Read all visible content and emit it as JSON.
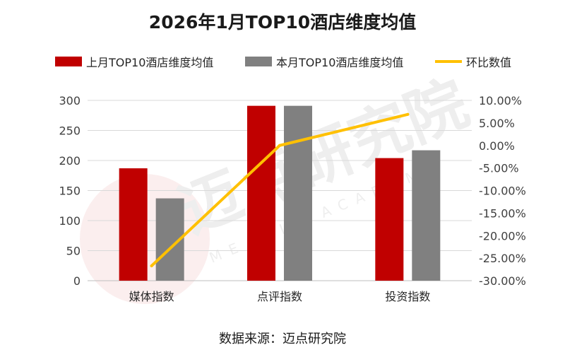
{
  "chart_data": {
    "type": "bar",
    "title": "2026年1月TOP10酒店维度均值",
    "categories": [
      "媒体指数",
      "点评指数",
      "投资指数"
    ],
    "series": [
      {
        "name": "上月TOP10酒店维度均值",
        "type": "bar",
        "axis": "left",
        "color": "#c00000",
        "values": [
          187,
          291,
          204
        ]
      },
      {
        "name": "本月TOP10酒店维度均值",
        "type": "bar",
        "axis": "left",
        "color": "#808080",
        "values": [
          137,
          291,
          217
        ]
      },
      {
        "name": "环比数值",
        "type": "line",
        "axis": "right",
        "color": "#ffc000",
        "values": [
          -26.7,
          0.0,
          6.9
        ]
      }
    ],
    "y_left": {
      "min": 0,
      "max": 300,
      "step": 50,
      "ticks": [
        "0",
        "50",
        "100",
        "150",
        "200",
        "250",
        "300"
      ]
    },
    "y_right": {
      "min": -30,
      "max": 10,
      "step": 5,
      "ticks": [
        "-30.00%",
        "-25.00%",
        "-20.00%",
        "-15.00%",
        "-10.00%",
        "-5.00%",
        "0.00%",
        "5.00%",
        "10.00%"
      ]
    },
    "grid": true,
    "legend_position": "top",
    "source": "数据来源：迈点研究院"
  },
  "watermark": {
    "text": "迈点研究院",
    "subtext": "MEADIN ACADEMY"
  }
}
